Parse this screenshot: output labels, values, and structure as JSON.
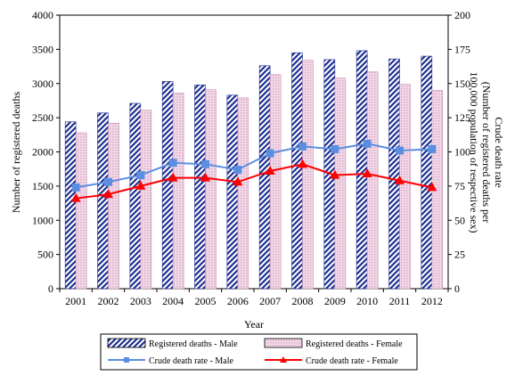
{
  "chart_data": {
    "type": "bar",
    "title": "",
    "xlabel": "Year",
    "ylabel": "Number of registered deaths",
    "y2label_line1": "Crude death rate",
    "y2label_line2": "(Number of registered deaths per",
    "y2label_line3": "100,000 population of respective sex)",
    "ylim": [
      0,
      4000
    ],
    "y2lim": [
      0,
      200
    ],
    "yticks": [
      "0",
      "500",
      "1000",
      "1500",
      "2000",
      "2500",
      "3000",
      "3500",
      "4000"
    ],
    "y2ticks": [
      "0",
      "25",
      "50",
      "75",
      "100",
      "125",
      "150",
      "175",
      "200"
    ],
    "grid": false,
    "legend_position": "bottom",
    "categories": [
      "2001",
      "2002",
      "2003",
      "2004",
      "2005",
      "2006",
      "2007",
      "2008",
      "2009",
      "2010",
      "2011",
      "2012"
    ],
    "series": [
      {
        "name": "Registered deaths - Male",
        "kind": "bar",
        "axis": "left",
        "pattern": "diagonal-stripes",
        "color": "#1f2f8f",
        "values": [
          2440,
          2570,
          2710,
          3030,
          2980,
          2830,
          3260,
          3450,
          3350,
          3480,
          3360,
          3400
        ]
      },
      {
        "name": "Registered deaths - Female",
        "kind": "bar",
        "axis": "left",
        "pattern": "dots",
        "color": "#d9a7c7",
        "values": [
          2280,
          2420,
          2610,
          2860,
          2910,
          2790,
          3130,
          3340,
          3080,
          3170,
          2990,
          2900
        ]
      },
      {
        "name": "Crude death rate - Male",
        "kind": "line",
        "axis": "right",
        "marker": "square",
        "color": "#5b8ee0",
        "values": [
          74,
          78,
          83,
          92,
          91,
          87,
          99,
          104,
          102,
          106,
          101,
          102
        ]
      },
      {
        "name": "Crude death rate - Female",
        "kind": "line",
        "axis": "right",
        "marker": "triangle",
        "color": "#ff0000",
        "values": [
          66,
          69,
          75,
          81,
          81,
          78,
          86,
          91,
          83,
          84,
          79,
          74
        ]
      }
    ]
  }
}
